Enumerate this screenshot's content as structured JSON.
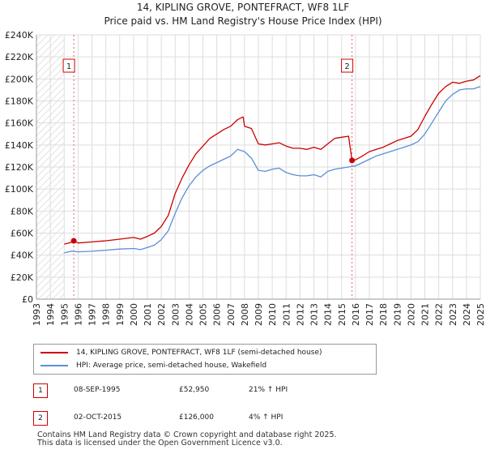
{
  "title_line1": "14, KIPLING GROVE, PONTEFRACT, WF8 1LF",
  "title_line2": "Price paid vs. HM Land Registry's House Price Index (HPI)",
  "chart_data": {
    "type": "line",
    "title": "14, KIPLING GROVE, PONTEFRACT, WF8 1LF — Price paid vs. HM Land Registry's House Price Index (HPI)",
    "xlim": [
      1993,
      2025
    ],
    "ylim": [
      0,
      240000
    ],
    "y_ticks": [
      0,
      20000,
      40000,
      60000,
      80000,
      100000,
      120000,
      140000,
      160000,
      180000,
      200000,
      220000,
      240000
    ],
    "y_tick_labels": [
      "£0",
      "£20K",
      "£40K",
      "£60K",
      "£80K",
      "£100K",
      "£120K",
      "£140K",
      "£160K",
      "£180K",
      "£200K",
      "£220K",
      "£240K"
    ],
    "x_ticks": [
      1993,
      1994,
      1995,
      1996,
      1997,
      1998,
      1999,
      2000,
      2001,
      2002,
      2003,
      2004,
      2005,
      2006,
      2007,
      2008,
      2009,
      2010,
      2011,
      2012,
      2013,
      2014,
      2015,
      2016,
      2017,
      2018,
      2019,
      2020,
      2021,
      2022,
      2023,
      2024,
      2025
    ],
    "x_tick_labels": [
      "1993",
      "1994",
      "1995",
      "1996",
      "1997",
      "1998",
      "1999",
      "2000",
      "2001",
      "2002",
      "2003",
      "2004",
      "2005",
      "2006",
      "2007",
      "2008",
      "2009",
      "2010",
      "2011",
      "2012",
      "2013",
      "2014",
      "2015",
      "2016",
      "2017",
      "2018",
      "2019",
      "2020",
      "2021",
      "2022",
      "2023",
      "2024",
      "2025"
    ],
    "hatched_until": 1995,
    "grid": true,
    "series": [
      {
        "name": "14, KIPLING GROVE, PONTEFRACT, WF8 1LF (semi-detached house)",
        "color": "#cc0000",
        "x": [
          1995.0,
          1995.5,
          1995.69,
          1996,
          1997,
          1998,
          1999,
          2000,
          2000.5,
          2001,
          2001.5,
          2002,
          2002.5,
          2003,
          2003.5,
          2004,
          2004.5,
          2005,
          2005.5,
          2006,
          2006.5,
          2007,
          2007.5,
          2007.9,
          2008,
          2008.5,
          2009,
          2009.5,
          2010,
          2010.5,
          2011,
          2011.5,
          2012,
          2012.5,
          2013,
          2013.5,
          2014,
          2014.5,
          2015,
          2015.5,
          2015.75,
          2016,
          2016.5,
          2017,
          2017.5,
          2018,
          2018.5,
          2019,
          2019.5,
          2020,
          2020.5,
          2021,
          2021.5,
          2022,
          2022.5,
          2023,
          2023.5,
          2024,
          2024.5,
          2025
        ],
        "values": [
          50000,
          51500,
          52950,
          51000,
          52000,
          53000,
          54500,
          56000,
          54500,
          57000,
          60000,
          66000,
          76000,
          96000,
          110000,
          122000,
          132000,
          139000,
          146000,
          150000,
          154000,
          157000,
          163000,
          165500,
          157000,
          155000,
          141000,
          140000,
          141000,
          142000,
          139000,
          137000,
          137000,
          136000,
          138000,
          136000,
          141000,
          146000,
          147000,
          148000,
          126000,
          126500,
          130000,
          134000,
          136000,
          138000,
          141000,
          144000,
          146000,
          148000,
          154000,
          166000,
          177000,
          187000,
          193000,
          197000,
          196000,
          198000,
          199000,
          203000
        ]
      },
      {
        "name": "HPI: Average price, semi-detached house, Wakefield",
        "color": "#5b8fd4",
        "x": [
          1995.0,
          1995.5,
          1996,
          1997,
          1998,
          1999,
          2000,
          2000.5,
          2001,
          2001.5,
          2002,
          2002.5,
          2003,
          2003.5,
          2004,
          2004.5,
          2005,
          2005.5,
          2006,
          2006.5,
          2007,
          2007.5,
          2008,
          2008.5,
          2009,
          2009.5,
          2010,
          2010.5,
          2011,
          2011.5,
          2012,
          2012.5,
          2013,
          2013.5,
          2014,
          2014.5,
          2015,
          2015.5,
          2016,
          2016.5,
          2017,
          2017.5,
          2018,
          2018.5,
          2019,
          2019.5,
          2020,
          2020.5,
          2021,
          2021.5,
          2022,
          2022.5,
          2023,
          2023.5,
          2024,
          2024.5,
          2025
        ],
        "values": [
          42000,
          43500,
          43000,
          43500,
          44500,
          45500,
          46000,
          45000,
          47000,
          49000,
          54000,
          62000,
          78000,
          92000,
          103000,
          111000,
          117000,
          121000,
          124000,
          127000,
          130000,
          136000,
          134000,
          128000,
          117000,
          116000,
          118000,
          119000,
          115000,
          113000,
          112000,
          112000,
          113000,
          111000,
          116000,
          118000,
          119000,
          120000,
          121000,
          124000,
          127000,
          130000,
          132000,
          134000,
          136000,
          138000,
          140000,
          143000,
          150000,
          160000,
          170000,
          180000,
          186000,
          190000,
          191000,
          191000,
          193000
        ]
      }
    ],
    "annotations": [
      {
        "label": "1",
        "x": 1995.69,
        "y": 52950
      },
      {
        "label": "2",
        "x": 2015.75,
        "y": 126000
      }
    ]
  },
  "legend": {
    "red_label": "14, KIPLING GROVE, PONTEFRACT, WF8 1LF (semi-detached house)",
    "blue_label": "HPI: Average price, semi-detached house, Wakefield"
  },
  "sales": [
    {
      "num": "1",
      "date": "08-SEP-1995",
      "price": "£52,950",
      "hpi": "21% ↑ HPI"
    },
    {
      "num": "2",
      "date": "02-OCT-2015",
      "price": "£126,000",
      "hpi": "4% ↑ HPI"
    }
  ],
  "footer_line1": "Contains HM Land Registry data © Crown copyright and database right 2025.",
  "footer_line2": "This data is licensed under the Open Government Licence v3.0."
}
